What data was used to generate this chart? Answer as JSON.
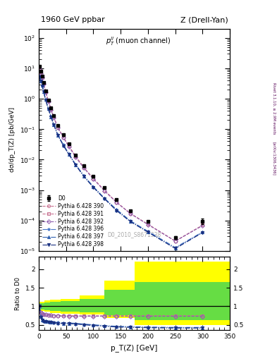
{
  "title_left": "1960 GeV ppbar",
  "title_right": "Z (Drell-Yan)",
  "watermark": "D0_2010_S8671338",
  "right_label1": "Rivet 3.1.10, ≥ 2.9M events",
  "right_label2": "[arXiv:1306.3436]",
  "ylabel_main": "dσ/dp_T(Z) [pb/GeV]",
  "ylabel_ratio": "Ratio to D0",
  "xlabel": "p_T(Z) [GeV]",
  "xlim": [
    0,
    350
  ],
  "ylim_main": [
    1e-05,
    200
  ],
  "d0_x": [
    1.25,
    3.75,
    6.25,
    8.75,
    12.5,
    17.5,
    22.5,
    27.5,
    35,
    45,
    55,
    67.5,
    82.5,
    100,
    120,
    142.5,
    167.5,
    200,
    250,
    300
  ],
  "d0_y": [
    11.5,
    8.0,
    5.5,
    3.5,
    1.8,
    0.9,
    0.5,
    0.28,
    0.13,
    0.065,
    0.033,
    0.014,
    0.0062,
    0.0028,
    0.0012,
    0.00048,
    0.00021,
    9.5e-05,
    2.8e-05,
    9.5e-05
  ],
  "d0_yerr": [
    0.8,
    0.5,
    0.3,
    0.2,
    0.1,
    0.05,
    0.03,
    0.015,
    0.007,
    0.004,
    0.002,
    0.001,
    0.0004,
    0.00018,
    8e-05,
    3e-05,
    1.4e-05,
    6e-06,
    3e-06,
    2e-05
  ],
  "py390_y": [
    9.8,
    7.0,
    5.1,
    3.2,
    1.7,
    0.85,
    0.45,
    0.25,
    0.115,
    0.055,
    0.028,
    0.013,
    0.0055,
    0.0024,
    0.00098,
    0.0004,
    0.00017,
    7.5e-05,
    2.1e-05,
    7e-05
  ],
  "py391_y": [
    9.8,
    7.0,
    5.1,
    3.2,
    1.7,
    0.85,
    0.45,
    0.25,
    0.115,
    0.055,
    0.028,
    0.013,
    0.0055,
    0.0024,
    0.00098,
    0.0004,
    0.00017,
    7.5e-05,
    2.1e-05,
    7e-05
  ],
  "py392_y": [
    9.5,
    6.8,
    4.9,
    3.1,
    1.65,
    0.82,
    0.44,
    0.24,
    0.112,
    0.053,
    0.027,
    0.012,
    0.0053,
    0.0023,
    0.00095,
    0.00039,
    0.00017,
    7.3e-05,
    2.1e-05,
    6.8e-05
  ],
  "py396_y": [
    5.5,
    3.9,
    2.8,
    1.8,
    0.96,
    0.48,
    0.26,
    0.143,
    0.065,
    0.031,
    0.016,
    0.007,
    0.003,
    0.0013,
    0.00055,
    0.00023,
    9.9e-05,
    4.4e-05,
    1.3e-05,
    4.2e-05
  ],
  "py397_y": [
    5.4,
    3.8,
    2.75,
    1.75,
    0.94,
    0.47,
    0.255,
    0.14,
    0.064,
    0.03,
    0.015,
    0.0068,
    0.0029,
    0.00126,
    0.00053,
    0.00022,
    9.5e-05,
    4.3e-05,
    1.2e-05,
    4.1e-05
  ],
  "py398_y": [
    5.3,
    3.75,
    2.7,
    1.72,
    0.92,
    0.46,
    0.25,
    0.138,
    0.062,
    0.029,
    0.015,
    0.0066,
    0.0028,
    0.00122,
    0.00052,
    0.00021,
    9.2e-05,
    4.1e-05,
    1.2e-05,
    4e-05
  ],
  "color_390": "#c87090",
  "color_391": "#c87090",
  "color_392": "#9060b0",
  "color_396": "#4878c8",
  "color_397": "#3060b0",
  "color_398": "#1a3080",
  "ratio_390_y": [
    1.0,
    0.83,
    0.8,
    0.78,
    0.77,
    0.76,
    0.75,
    0.74,
    0.74,
    0.74,
    0.74,
    0.74,
    0.74,
    0.74,
    0.74,
    0.74,
    0.74,
    0.74,
    0.74,
    0.74
  ],
  "ratio_391_y": [
    1.0,
    0.83,
    0.8,
    0.78,
    0.77,
    0.76,
    0.75,
    0.74,
    0.74,
    0.74,
    0.74,
    0.74,
    0.74,
    0.74,
    0.74,
    0.74,
    0.74,
    0.74,
    0.74,
    0.74
  ],
  "ratio_392_y": [
    1.0,
    0.83,
    0.8,
    0.78,
    0.77,
    0.76,
    0.75,
    0.74,
    0.74,
    0.74,
    0.73,
    0.73,
    0.73,
    0.73,
    0.73,
    0.73,
    0.73,
    0.73,
    0.73,
    0.73
  ],
  "ratio_396_y": [
    1.0,
    0.73,
    0.64,
    0.61,
    0.6,
    0.59,
    0.58,
    0.57,
    0.56,
    0.55,
    0.55,
    0.54,
    0.52,
    0.5,
    0.48,
    0.46,
    0.45,
    0.44,
    0.43,
    0.43
  ],
  "ratio_397_y": [
    1.0,
    0.72,
    0.63,
    0.6,
    0.59,
    0.58,
    0.57,
    0.56,
    0.55,
    0.54,
    0.54,
    0.53,
    0.51,
    0.49,
    0.47,
    0.45,
    0.44,
    0.43,
    0.42,
    0.42
  ],
  "ratio_398_y": [
    1.0,
    0.71,
    0.62,
    0.59,
    0.58,
    0.57,
    0.56,
    0.55,
    0.54,
    0.53,
    0.53,
    0.52,
    0.5,
    0.48,
    0.46,
    0.44,
    0.43,
    0.42,
    0.41,
    0.41
  ],
  "band_x_edges": [
    0,
    5,
    10,
    20,
    40,
    75,
    120,
    175,
    225,
    350
  ],
  "band_yellow_lo": [
    0.87,
    0.87,
    0.85,
    0.82,
    0.8,
    0.77,
    0.68,
    0.5,
    0.5
  ],
  "band_yellow_hi": [
    1.13,
    1.13,
    1.15,
    1.18,
    1.2,
    1.3,
    1.7,
    2.2,
    2.2
  ],
  "band_green_lo": [
    0.92,
    0.92,
    0.9,
    0.88,
    0.86,
    0.83,
    0.76,
    0.62,
    0.62
  ],
  "band_green_hi": [
    1.08,
    1.08,
    1.1,
    1.12,
    1.14,
    1.2,
    1.45,
    1.65,
    1.65
  ]
}
